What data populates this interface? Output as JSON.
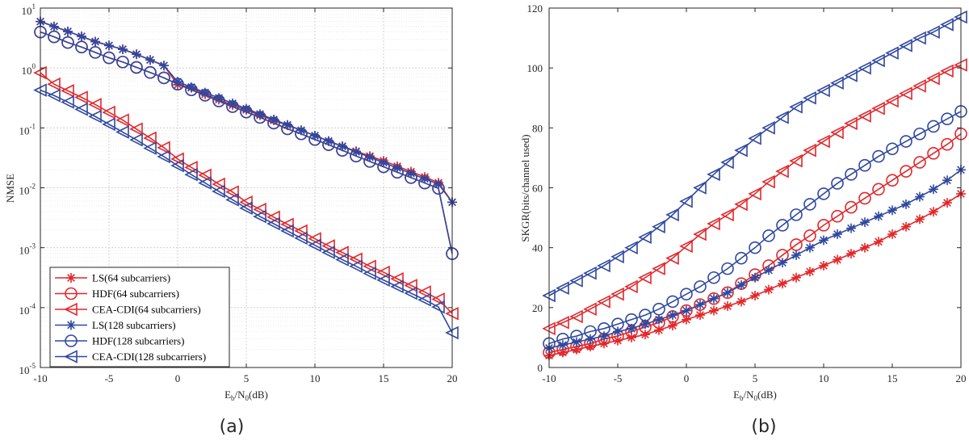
{
  "colors": {
    "red": "#E3272B",
    "blue": "#2F48A0",
    "axis": "#262626"
  },
  "chart_data": [
    {
      "id": "a",
      "type": "line",
      "caption": "(a)",
      "yscale": "log",
      "xlabel": {
        "main": "E",
        "sub1": "b",
        "mid": "/N",
        "sub2": "0",
        "tail": "(dB)"
      },
      "ylabel": "NMSE",
      "xlim": [
        -10,
        20
      ],
      "ylim_exp": [
        -5,
        1
      ],
      "xticks": [
        "-10",
        "-5",
        "0",
        "5",
        "10",
        "15",
        "20"
      ],
      "yticks": [
        {
          "base": "10",
          "exp": "-5"
        },
        {
          "base": "10",
          "exp": "-4"
        },
        {
          "base": "10",
          "exp": "-3"
        },
        {
          "base": "10",
          "exp": "-2"
        },
        {
          "base": "10",
          "exp": "-1"
        },
        {
          "base": "10",
          "exp": "0"
        },
        {
          "base": "10",
          "exp": "1"
        }
      ],
      "grid": true,
      "legend_position": "bottom-left",
      "x": [
        -10,
        -9,
        -8,
        -7,
        -6,
        -5,
        -4,
        -3,
        -2,
        -1,
        0,
        1,
        2,
        3,
        4,
        5,
        6,
        7,
        8,
        9,
        10,
        11,
        12,
        13,
        14,
        15,
        16,
        17,
        18,
        19,
        20
      ],
      "series": [
        {
          "name": "LS(64 subcarriers)",
          "color": "red",
          "marker": "star",
          "logvals": [
            0.775,
            0.693,
            0.61,
            0.527,
            0.44,
            0.375,
            0.312,
            0.229,
            0.135,
            0.04,
            -0.28,
            -0.33,
            -0.44,
            -0.53,
            -0.62,
            -0.7,
            -0.79,
            -0.875,
            -0.955,
            -1.04,
            -1.13,
            -1.22,
            -1.305,
            -1.39,
            -1.47,
            -1.55,
            -1.64,
            -1.73,
            -1.82,
            -1.915,
            -2.24
          ]
        },
        {
          "name": "HDF(64 subcarriers)",
          "color": "red",
          "marker": "circle",
          "logvals": [
            0.6,
            0.52,
            0.425,
            0.35,
            0.26,
            0.17,
            0.1,
            0.01,
            -0.075,
            -0.165,
            -0.27,
            -0.365,
            -0.455,
            -0.55,
            -0.645,
            -0.735,
            -0.825,
            -0.92,
            -1.015,
            -1.1,
            -1.195,
            -1.28,
            -1.375,
            -1.47,
            -1.56,
            -1.65,
            -1.74,
            -1.83,
            -1.92,
            -2.01,
            -3.1
          ]
        },
        {
          "name": "CEA-CDI(64 subcarriers)",
          "color": "red",
          "marker": "triangle-left",
          "logvals": [
            -0.08,
            -0.27,
            -0.38,
            -0.49,
            -0.61,
            -0.74,
            -0.87,
            -1.02,
            -1.17,
            -1.33,
            -1.52,
            -1.66,
            -1.79,
            -1.94,
            -2.07,
            -2.24,
            -2.36,
            -2.49,
            -2.61,
            -2.72,
            -2.85,
            -2.97,
            -3.08,
            -3.19,
            -3.31,
            -3.41,
            -3.52,
            -3.63,
            -3.74,
            -3.86,
            -4.1
          ]
        },
        {
          "name": "LS(128 subcarriers)",
          "color": "blue",
          "marker": "star",
          "logvals": [
            0.775,
            0.693,
            0.61,
            0.527,
            0.44,
            0.375,
            0.312,
            0.229,
            0.135,
            0.04,
            -0.23,
            -0.32,
            -0.41,
            -0.5,
            -0.59,
            -0.68,
            -0.77,
            -0.86,
            -0.95,
            -1.04,
            -1.13,
            -1.22,
            -1.31,
            -1.4,
            -1.49,
            -1.58,
            -1.67,
            -1.76,
            -1.85,
            -1.94,
            -2.24
          ]
        },
        {
          "name": "HDF(128 subcarriers)",
          "color": "blue",
          "marker": "circle",
          "logvals": [
            0.6,
            0.52,
            0.425,
            0.35,
            0.26,
            0.17,
            0.1,
            0.01,
            -0.075,
            -0.165,
            -0.27,
            -0.365,
            -0.455,
            -0.55,
            -0.645,
            -0.735,
            -0.825,
            -0.92,
            -1.015,
            -1.1,
            -1.195,
            -1.28,
            -1.375,
            -1.47,
            -1.56,
            -1.65,
            -1.74,
            -1.83,
            -1.92,
            -2.01,
            -3.1
          ]
        },
        {
          "name": "CEA-CDI(128 subcarriers)",
          "color": "blue",
          "marker": "triangle-left",
          "logvals": [
            -0.37,
            -0.46,
            -0.57,
            -0.69,
            -0.81,
            -0.94,
            -1.07,
            -1.2,
            -1.34,
            -1.48,
            -1.63,
            -1.78,
            -1.92,
            -2.06,
            -2.2,
            -2.34,
            -2.48,
            -2.6,
            -2.72,
            -2.84,
            -2.96,
            -3.08,
            -3.2,
            -3.31,
            -3.43,
            -3.54,
            -3.65,
            -3.76,
            -3.87,
            -3.99,
            -4.42
          ]
        }
      ]
    },
    {
      "id": "b",
      "type": "line",
      "caption": "(b)",
      "yscale": "linear",
      "xlabel": {
        "main": "E",
        "sub1": "b",
        "mid": "/N",
        "sub2": "0",
        "tail": "(dB)"
      },
      "ylabel": "SKGR(bits/channel used)",
      "xlim": [
        -10,
        20
      ],
      "ylim": [
        0,
        120
      ],
      "xticks": [
        "-10",
        "-5",
        "0",
        "5",
        "10",
        "15",
        "20"
      ],
      "yticks": [
        "0",
        "20",
        "40",
        "60",
        "80",
        "100",
        "120"
      ],
      "grid": false,
      "x": [
        -10,
        -9,
        -8,
        -7,
        -6,
        -5,
        -4,
        -3,
        -2,
        -1,
        0,
        1,
        2,
        3,
        4,
        5,
        6,
        7,
        8,
        9,
        10,
        11,
        12,
        13,
        14,
        15,
        16,
        17,
        18,
        19,
        20
      ],
      "series": [
        {
          "name": "LS(64 subcarriers)",
          "color": "red",
          "marker": "star",
          "values": [
            4,
            5,
            6,
            7,
            8,
            9,
            10,
            11,
            12.5,
            14,
            16,
            17.5,
            19,
            20.5,
            22,
            24,
            26,
            28,
            30,
            32,
            34,
            36,
            38,
            40,
            42,
            44.5,
            47,
            49.5,
            52,
            55,
            58
          ]
        },
        {
          "name": "HDF(64 subcarriers)",
          "color": "red",
          "marker": "circle",
          "values": [
            5,
            6,
            7,
            8,
            9.5,
            10.5,
            12,
            13.5,
            15,
            17,
            19,
            21,
            23,
            25,
            28,
            31,
            34,
            37.5,
            41,
            44,
            47.5,
            50.5,
            53.5,
            56.5,
            59.5,
            62.5,
            65.5,
            68.5,
            71.5,
            74.5,
            78
          ]
        },
        {
          "name": "CEA-CDI(64 subcarriers)",
          "color": "red",
          "marker": "triangle-left",
          "values": [
            13,
            15,
            17,
            19.5,
            22,
            24.5,
            27,
            30,
            33,
            36.5,
            40.5,
            44.5,
            48,
            51,
            54.5,
            58,
            62,
            65.5,
            69,
            72.5,
            75.5,
            78.5,
            81.5,
            84,
            86.5,
            89,
            91.5,
            94,
            96.5,
            99,
            101
          ]
        },
        {
          "name": "LS(128 subcarriers)",
          "color": "blue",
          "marker": "star",
          "values": [
            6.5,
            7.5,
            8.5,
            9.5,
            10.5,
            12,
            13,
            14.5,
            16,
            17.5,
            19,
            21,
            23,
            25,
            27.5,
            30,
            32.5,
            35,
            37.5,
            40,
            42.5,
            44.5,
            46.5,
            48.5,
            50.5,
            52.5,
            54.5,
            57,
            59.5,
            62.5,
            66
          ]
        },
        {
          "name": "HDF(128 subcarriers)",
          "color": "blue",
          "marker": "circle",
          "values": [
            8,
            9.5,
            10.5,
            12,
            13,
            14.5,
            16,
            17.5,
            19.5,
            22,
            24.5,
            27,
            30,
            33,
            36.5,
            40,
            44,
            47.5,
            51,
            54.5,
            58,
            61.5,
            64.5,
            67.5,
            70.5,
            73,
            75.5,
            78,
            80.5,
            83,
            85.5
          ]
        },
        {
          "name": "CEA-CDI(128 subcarriers)",
          "color": "blue",
          "marker": "triangle-left",
          "values": [
            24,
            26.5,
            29,
            31.5,
            34,
            37,
            40,
            43.5,
            47,
            51,
            55.5,
            60,
            64.5,
            68.5,
            72.5,
            76.5,
            80,
            83.5,
            87,
            90,
            92.5,
            95,
            97.5,
            100,
            102.5,
            105,
            107.5,
            110,
            112,
            114.5,
            117
          ]
        }
      ]
    }
  ]
}
